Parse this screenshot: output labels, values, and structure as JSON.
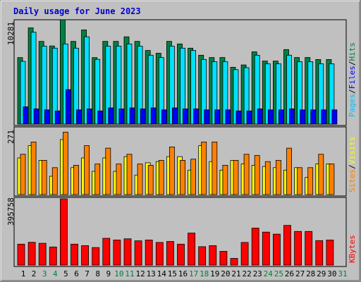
{
  "chart_data": {
    "type": "bar",
    "title": "Daily usage for June 2023",
    "days": [
      "1",
      "2",
      "3",
      "4",
      "5",
      "6",
      "7",
      "8",
      "9",
      "10",
      "11",
      "12",
      "13",
      "14",
      "15",
      "16",
      "17",
      "18",
      "19",
      "20",
      "21",
      "22",
      "23",
      "24",
      "25",
      "26",
      "27",
      "28",
      "29",
      "30",
      "31"
    ],
    "weekend_days": [
      "3",
      "4",
      "10",
      "11",
      "17",
      "18",
      "24",
      "25",
      "31"
    ],
    "panels": [
      {
        "id": "hits",
        "ytick": "10281",
        "ymax": 10281,
        "series": [
          {
            "name": "Hits",
            "color": "#008040",
            "values": [
              6550,
              9480,
              8150,
              7700,
              10281,
              8150,
              9280,
              6550,
              8150,
              8150,
              8600,
              8150,
              7250,
              6980,
              8150,
              7900,
              7480,
              6790,
              6560,
              6560,
              5600,
              5830,
              7120,
              6210,
              6210,
              7340,
              6560,
              6560,
              6360,
              6360,
              0
            ]
          },
          {
            "name": "Files",
            "color": "#00e0ff",
            "values": [
              6180,
              9050,
              7680,
              7480,
              7900,
              7480,
              8600,
              6380,
              7680,
              7680,
              7900,
              7680,
              6790,
              6560,
              7680,
              7480,
              7250,
              6360,
              6150,
              6150,
              5360,
              5560,
              6790,
              5940,
              5940,
              6790,
              6150,
              6150,
              5940,
              5940,
              0
            ]
          },
          {
            "name": "Pages",
            "color": "#0000ff",
            "values": [
              1700,
              1500,
              1400,
              1300,
              3400,
              1400,
              1500,
              1300,
              1600,
              1500,
              1600,
              1500,
              1600,
              1400,
              1600,
              1500,
              1500,
              1400,
              1400,
              1400,
              1300,
              1300,
              1500,
              1400,
              1400,
              1500,
              1400,
              1400,
              1400,
              1400,
              0
            ]
          }
        ]
      },
      {
        "id": "visits",
        "ytick": "271",
        "ymax": 271,
        "series": [
          {
            "name": "Visits",
            "color": "#ffff00",
            "values": [
              150,
              200,
              140,
              75,
              225,
              110,
              150,
              95,
              150,
              95,
              155,
              80,
              130,
              135,
              155,
              155,
              100,
              200,
              135,
              100,
              140,
              125,
              120,
              115,
              110,
              100,
              110,
              70,
              125,
              125,
              0
            ]
          },
          {
            "name": "Sites",
            "color": "#ff8000",
            "values": [
              165,
              215,
              140,
              110,
              255,
              120,
              200,
              125,
              190,
              125,
              165,
              125,
              120,
              140,
              195,
              140,
              145,
              215,
              215,
              120,
              140,
              165,
              160,
              135,
              140,
              190,
              110,
              110,
              165,
              125,
              0
            ]
          }
        ]
      },
      {
        "id": "kbytes",
        "ytick": "395758",
        "ymax": 395758,
        "series": [
          {
            "name": "KBytes",
            "color": "#ff0000",
            "values": [
              125000,
              136000,
              130000,
              108000,
              395758,
              125000,
              116000,
              105000,
              160000,
              150000,
              157000,
              145000,
              150000,
              135000,
              141000,
              125000,
              191000,
              110000,
              116000,
              82000,
              40000,
              135000,
              221000,
              197000,
              185000,
              237000,
              201000,
              201000,
              146000,
              150000,
              0
            ]
          }
        ]
      }
    ],
    "side_labels": {
      "hits": [
        {
          "text": "Pages",
          "color": "#00c0ff"
        },
        {
          "text": "Files",
          "color": "#0000ff"
        },
        {
          "text": "Hits",
          "color": "#008040"
        }
      ],
      "visits": [
        {
          "text": "Sites",
          "color": "#ff8000"
        },
        {
          "text": "Visits",
          "color": "#ffff00"
        }
      ],
      "kbytes": [
        {
          "text": "KBytes",
          "color": "#ff0000"
        }
      ]
    },
    "separator": "/",
    "colors": {
      "background": "#c0c0c0",
      "panel_bg": "#c0c0c0",
      "weekday_label": "#000000",
      "weekend_label": "#008040"
    }
  }
}
